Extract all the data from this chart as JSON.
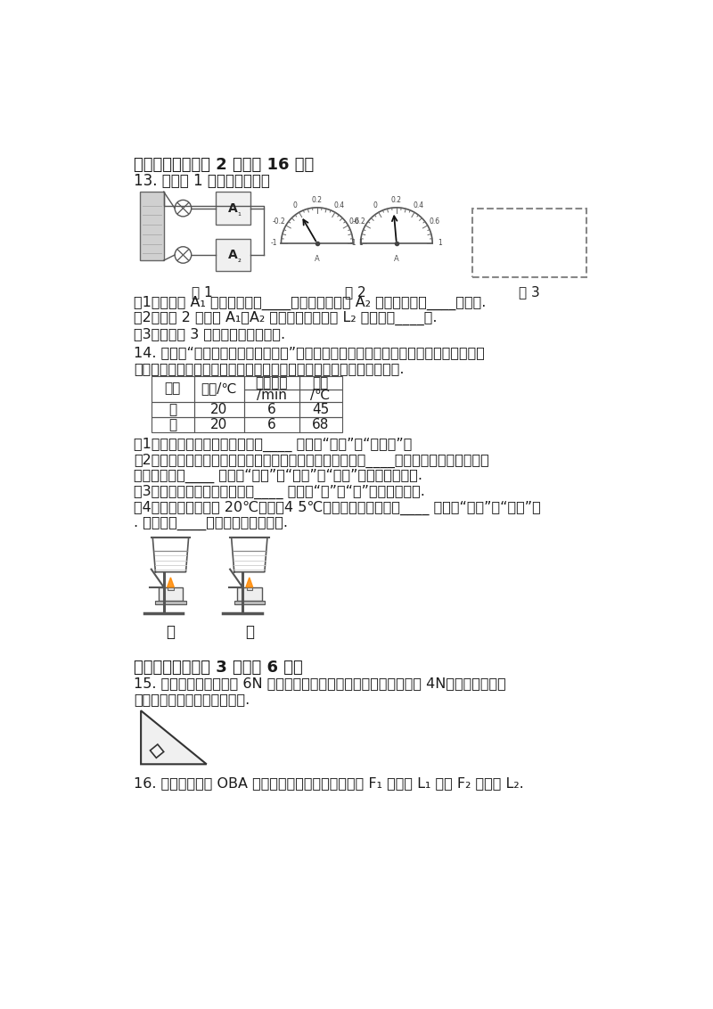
{
  "bg_color": "#ffffff",
  "section4_title": "四、实验题（每空 2 分，共 16 分）",
  "q13_title": "13. 在如图 1 所示的电路中，",
  "q13_subs": [
    "（1）电流表 A₁ 的示数是通过____的电流，电流表 A₂ 的示数是通过____的电流.",
    "（2）如图 2 电流表 A₁、A₂ 的示数，可知通过 L₂ 的电流是____安.",
    "（3）在如图 3 虚线框内画出电路图."
  ],
  "q14_intro": "14. 小明在“探究不同液体的吸热情况”试验中，用了如图甲所示的两套完全相同的装置，",
  "q14_intro2": "他按实验要求分别对甲和乙两种液体物质进行加热，实验数据记录如表.",
  "table_h1": [
    "物质",
    "初温/℃",
    "加热时间",
    "末温"
  ],
  "table_h2": [
    "",
    "",
    "/min",
    "/℃"
  ],
  "table_r1": [
    "甲",
    "20",
    "6",
    "45"
  ],
  "table_r2": [
    "乙",
    "20",
    "6",
    "68"
  ],
  "q14_subs": [
    "（1）按实验要求，甲和乙的质量____ （选填“相同”或“不相同”）",
    "（2）在此实验中，如果要使甲和乙的最后温度相同，就要给____加热更长的时间，此时，",
    "甲吸收的热量____ （选填“大于”或“小于”或“等于”）乙吸收的热量.",
    "（3）根据实验数据分析得知，____ （选填“甲”或“乙”）的比热容大.",
    "（4）物质甲从温度由 20℃加热到4 5℃的过程中，他的内能____ （选填“增大”或“减小”）",
    ". 这是采用____方式改变物体内能的."
  ],
  "section5_title": "五、作图题（每题 3 分，共 6 分）",
  "q15_text": "15. 如图所示是一个重为 6N 的物体静止在斜面上，它对斜面的压力为 4N，请在图中画出",
  "q15_text2": "物体所受重力和支持力的图示.",
  "q16_text": "16. 如图所示杠杆 OBA 处于平衡状态，请分别画出力 F₁ 的力臂 L₁ 和力 F₂ 的力臂 L₂.",
  "fig1_label": "图 1",
  "fig2_label": "图 2",
  "fig3_label": "图 3",
  "jia_label": "甲",
  "yi_label": "乙"
}
